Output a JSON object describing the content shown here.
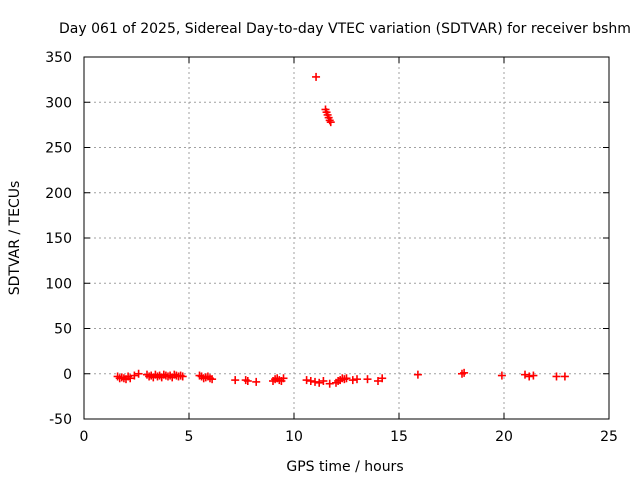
{
  "chart_data": {
    "type": "scatter",
    "title": "Day 061 of 2025, Sidereal Day-to-day VTEC variation (SDTVAR) for receiver bshm",
    "xlabel": "GPS time / hours",
    "ylabel": "SDTVAR / TECUs",
    "xlim": [
      0,
      25
    ],
    "ylim": [
      -50,
      350
    ],
    "xticks": [
      0,
      5,
      10,
      15,
      20,
      25
    ],
    "yticks": [
      -50,
      0,
      50,
      100,
      150,
      200,
      250,
      300,
      350
    ],
    "grid": true,
    "marker": "plus",
    "color": "#ff0000",
    "series": [
      {
        "name": "SDTVAR",
        "x": [
          1.6,
          1.7,
          1.8,
          1.9,
          2.0,
          2.1,
          2.2,
          2.4,
          2.6,
          3.0,
          3.1,
          3.2,
          3.3,
          3.4,
          3.5,
          3.6,
          3.7,
          3.8,
          3.9,
          4.0,
          4.1,
          4.2,
          4.3,
          4.4,
          4.5,
          4.6,
          4.7,
          5.5,
          5.6,
          5.7,
          5.8,
          5.9,
          6.0,
          6.1,
          7.2,
          7.7,
          7.8,
          8.2,
          9.0,
          9.1,
          9.2,
          9.3,
          9.4,
          9.5,
          10.6,
          10.8,
          11.0,
          11.2,
          11.4,
          11.7,
          12.0,
          12.1,
          12.2,
          12.3,
          12.4,
          12.5,
          12.8,
          13.0,
          13.5,
          14.0,
          14.2,
          15.9,
          18.0,
          18.1,
          19.9,
          21.0,
          21.2,
          21.4,
          22.5,
          22.9,
          11.05,
          11.5,
          11.55,
          11.6,
          11.65,
          11.7,
          11.75
        ],
        "y": [
          -3,
          -5,
          -4,
          -5,
          -6,
          -3,
          -5,
          -2,
          0,
          -1,
          -3,
          -2,
          -4,
          -1,
          -3,
          -2,
          -4,
          -1,
          -2,
          -3,
          -2,
          -4,
          -1,
          -2,
          -3,
          -2,
          -3,
          -2,
          -3,
          -5,
          -4,
          -3,
          -5,
          -6,
          -7,
          -7,
          -8,
          -9,
          -8,
          -6,
          -5,
          -7,
          -8,
          -5,
          -7,
          -8,
          -9,
          -10,
          -8,
          -11,
          -10,
          -8,
          -7,
          -5,
          -6,
          -5,
          -7,
          -6,
          -6,
          -8,
          -5,
          -1,
          0,
          1,
          -2,
          -1,
          -3,
          -2,
          -3,
          -3,
          328,
          292,
          289,
          286,
          283,
          280,
          278
        ]
      }
    ]
  }
}
